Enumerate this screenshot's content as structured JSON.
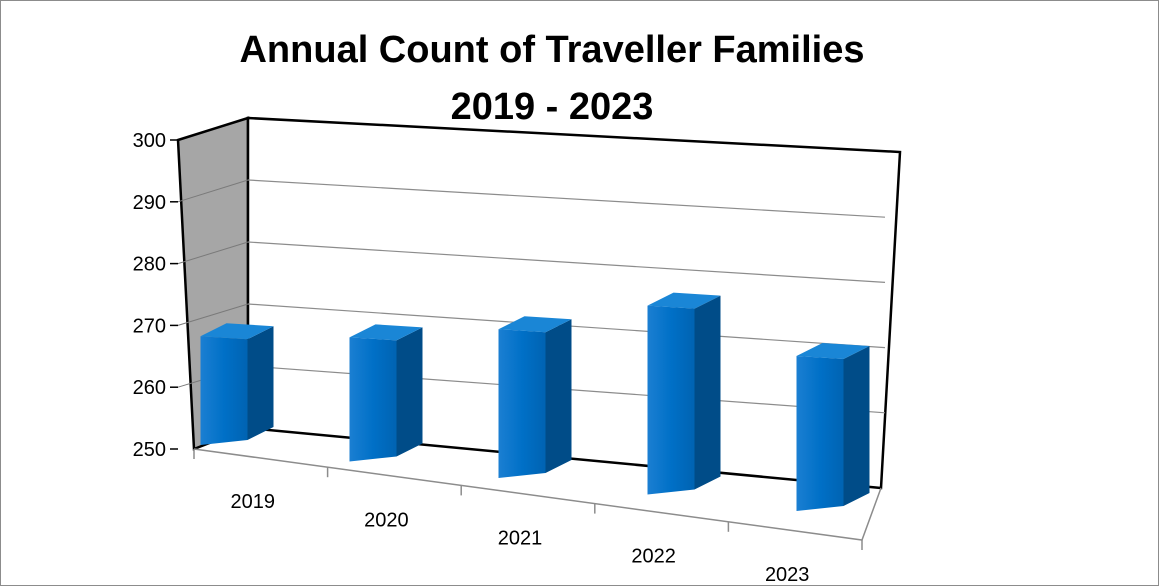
{
  "chart_data": {
    "type": "bar",
    "title": "Annual Count of Traveller Families",
    "subtitle": "2019 - 2023",
    "categories": [
      "2019",
      "2020",
      "2021",
      "2022",
      "2023"
    ],
    "values": [
      272,
      277,
      285,
      298,
      287
    ],
    "ylim": [
      250,
      300
    ],
    "yticks": [
      "250",
      "260",
      "270",
      "280",
      "290",
      "300"
    ],
    "grid": true,
    "legend": "none",
    "colors": {
      "bar_front": "#0070C7",
      "bar_side": "#004C88",
      "bar_top": "#1A86D6",
      "side_wall": "#A6A6A6"
    }
  }
}
